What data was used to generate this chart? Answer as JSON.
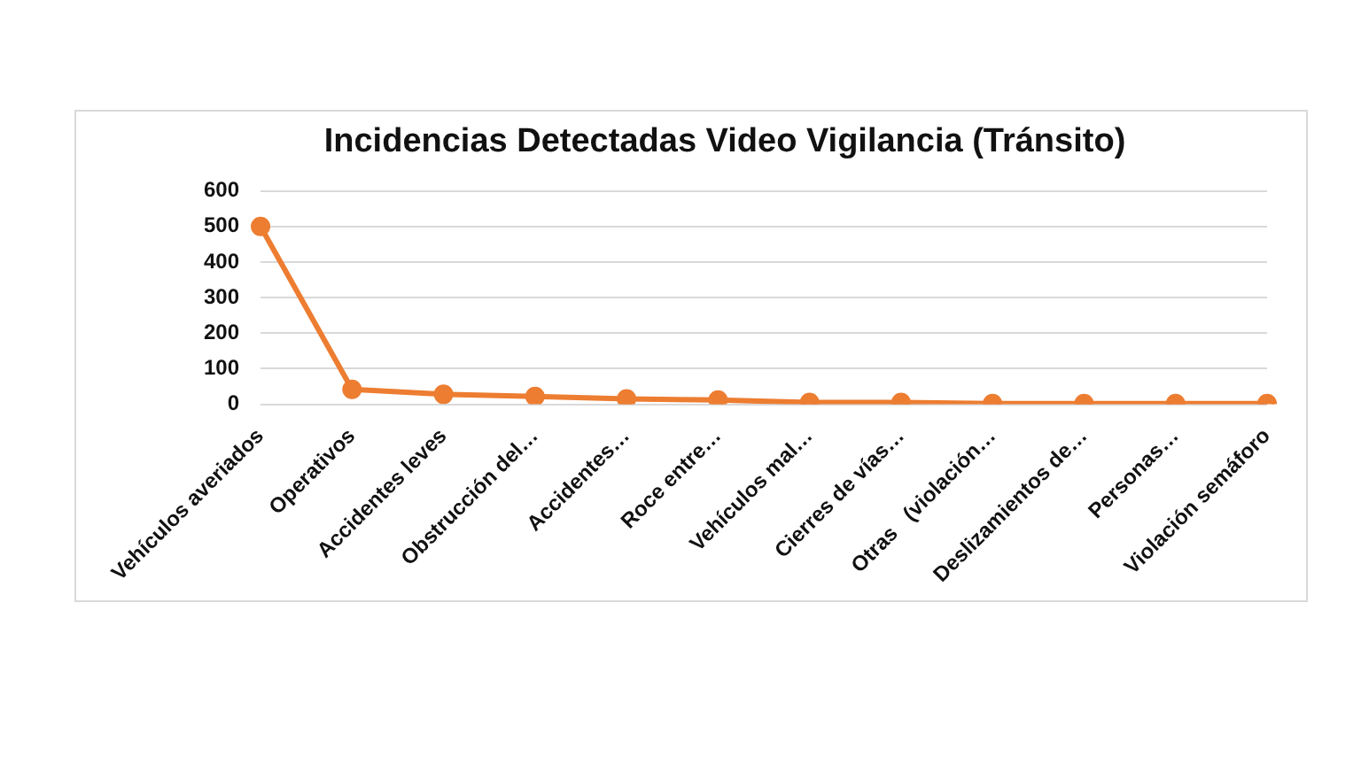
{
  "chart_data": {
    "type": "line",
    "title": "Incidencias Detectadas Video Vigilancia (Tránsito)",
    "categories": [
      "Vehículos averiados",
      "Operativos",
      "Accidentes leves",
      "Obstrucción del…",
      "Accidentes…",
      "Roce entre…",
      "Vehículos mal…",
      "Cierres de vías…",
      "Otras   (violación…",
      "Deslizamientos de…",
      "Personas…",
      "Violación semáforo"
    ],
    "series": [
      {
        "color": "#ed7d31",
        "values": [
          500,
          42,
          28,
          22,
          15,
          12,
          5,
          5,
          2,
          2,
          2,
          2
        ]
      }
    ],
    "ylim": [
      0,
      600
    ],
    "yticks": [
      0,
      100,
      200,
      300,
      400,
      500,
      600
    ],
    "grid": "y",
    "legend": false,
    "marker": "circle",
    "line_style": "solid"
  }
}
